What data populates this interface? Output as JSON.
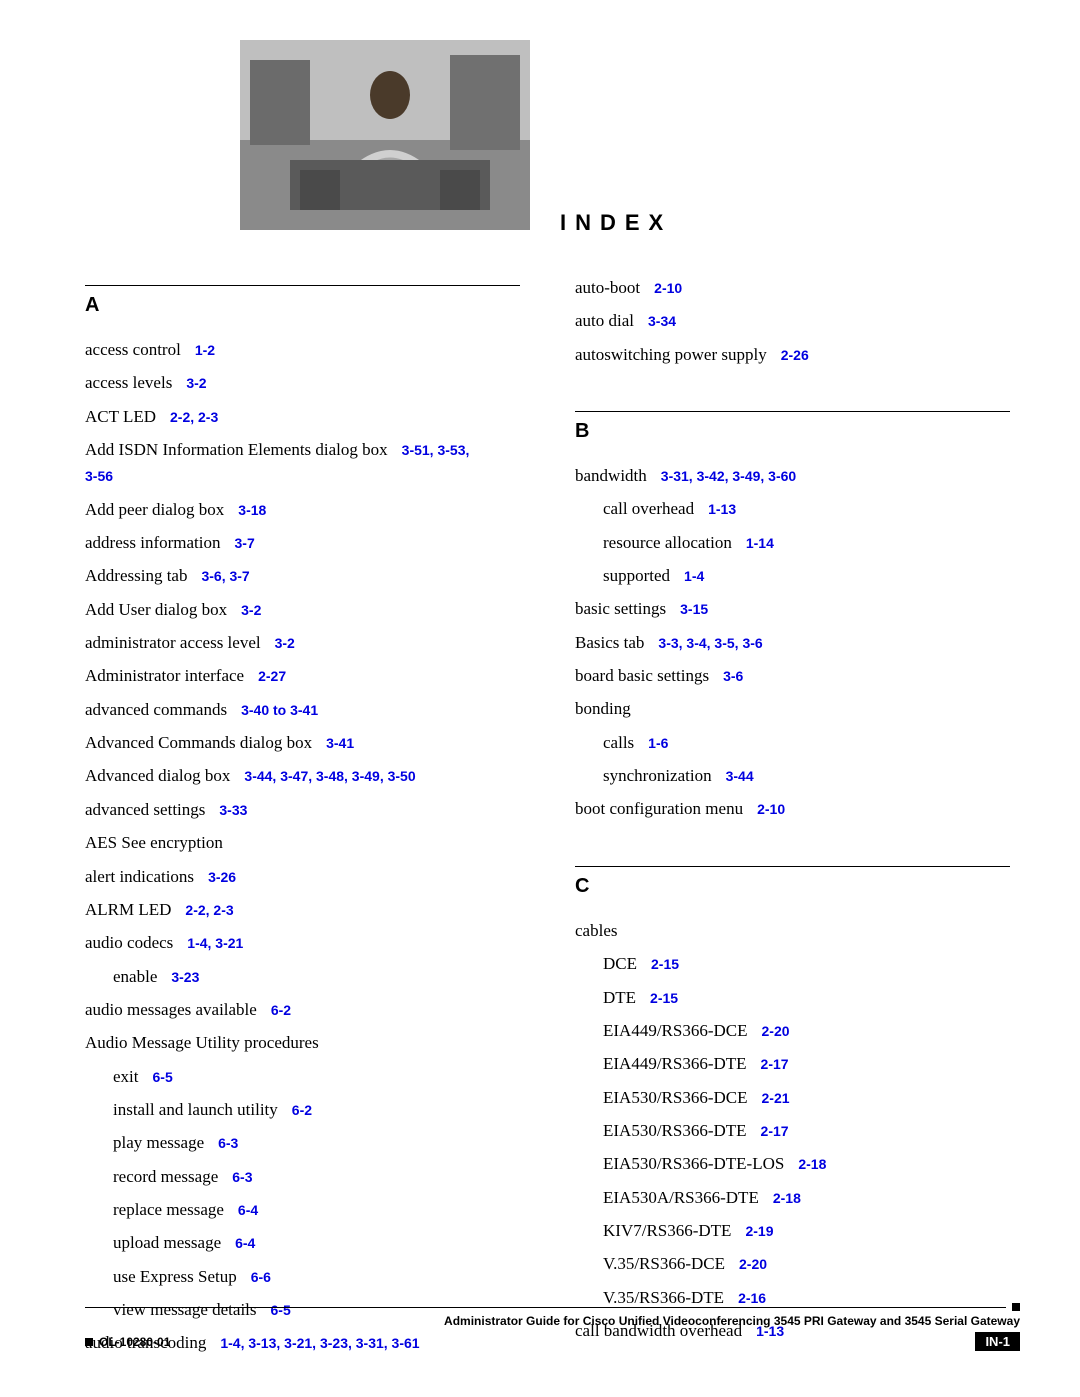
{
  "index_title": "INDEX",
  "sections": {
    "A": {
      "letter": "A",
      "entries": [
        {
          "text": "access control",
          "refs": "1-2"
        },
        {
          "text": "access levels",
          "refs": "3-2"
        },
        {
          "text": "ACT LED",
          "refs": "2-2, 2-3"
        },
        {
          "text": "Add ISDN Information Elements dialog box",
          "refs": "3-51, 3-53, 3-56",
          "wrap": true
        },
        {
          "text": "Add peer dialog box",
          "refs": "3-18"
        },
        {
          "text": "address information",
          "refs": "3-7"
        },
        {
          "text": "Addressing tab",
          "refs": "3-6, 3-7"
        },
        {
          "text": "Add User dialog box",
          "refs": "3-2"
        },
        {
          "text": "administrator access level",
          "refs": "3-2"
        },
        {
          "text": "Administrator interface",
          "refs": "2-27"
        },
        {
          "text": "advanced commands",
          "refs": "3-40 to 3-41"
        },
        {
          "text": "Advanced Commands dialog box",
          "refs": "3-41"
        },
        {
          "text": "Advanced dialog box",
          "refs": "3-44, 3-47, 3-48, 3-49, 3-50"
        },
        {
          "text": "advanced settings",
          "refs": "3-33"
        },
        {
          "text": "AES See encryption",
          "refs": ""
        },
        {
          "text": "alert indications",
          "refs": "3-26"
        },
        {
          "text": "ALRM LED",
          "refs": "2-2, 2-3"
        },
        {
          "text": "audio codecs",
          "refs": "1-4, 3-21"
        },
        {
          "text": "enable",
          "refs": "3-23",
          "indent": 1
        },
        {
          "text": "audio messages available",
          "refs": "6-2"
        },
        {
          "text": "Audio Message Utility procedures",
          "refs": ""
        },
        {
          "text": "exit",
          "refs": "6-5",
          "indent": 1
        },
        {
          "text": "install and launch utility",
          "refs": "6-2",
          "indent": 1
        },
        {
          "text": "play message",
          "refs": "6-3",
          "indent": 1
        },
        {
          "text": "record message",
          "refs": "6-3",
          "indent": 1
        },
        {
          "text": "replace message",
          "refs": "6-4",
          "indent": 1
        },
        {
          "text": "upload message",
          "refs": "6-4",
          "indent": 1
        },
        {
          "text": "use Express Setup",
          "refs": "6-6",
          "indent": 1
        },
        {
          "text": "view message details",
          "refs": "6-5",
          "indent": 1
        },
        {
          "text": "audio transcoding",
          "refs": "1-4, 3-13, 3-21, 3-23, 3-31, 3-61"
        }
      ]
    },
    "A2": {
      "entries": [
        {
          "text": "auto-boot",
          "refs": "2-10"
        },
        {
          "text": "auto dial",
          "refs": "3-34"
        },
        {
          "text": "autoswitching power supply",
          "refs": "2-26"
        }
      ]
    },
    "B": {
      "letter": "B",
      "entries": [
        {
          "text": "bandwidth",
          "refs": "3-31, 3-42, 3-49, 3-60"
        },
        {
          "text": "call overhead",
          "refs": "1-13",
          "indent": 1
        },
        {
          "text": "resource allocation",
          "refs": "1-14",
          "indent": 1
        },
        {
          "text": "supported",
          "refs": "1-4",
          "indent": 1
        },
        {
          "text": "basic settings",
          "refs": "3-15"
        },
        {
          "text": "Basics tab",
          "refs": "3-3, 3-4, 3-5, 3-6"
        },
        {
          "text": "board basic settings",
          "refs": "3-6"
        },
        {
          "text": "bonding",
          "refs": ""
        },
        {
          "text": "calls",
          "refs": "1-6",
          "indent": 1
        },
        {
          "text": "synchronization",
          "refs": "3-44",
          "indent": 1
        },
        {
          "text": "boot configuration menu",
          "refs": "2-10"
        }
      ]
    },
    "C": {
      "letter": "C",
      "entries": [
        {
          "text": "cables",
          "refs": ""
        },
        {
          "text": "DCE",
          "refs": "2-15",
          "indent": 1
        },
        {
          "text": "DTE",
          "refs": "2-15",
          "indent": 1
        },
        {
          "text": "EIA449/RS366-DCE",
          "refs": "2-20",
          "indent": 1
        },
        {
          "text": "EIA449/RS366-DTE",
          "refs": "2-17",
          "indent": 1
        },
        {
          "text": "EIA530/RS366-DCE",
          "refs": "2-21",
          "indent": 1
        },
        {
          "text": "EIA530/RS366-DTE",
          "refs": "2-17",
          "indent": 1
        },
        {
          "text": "EIA530/RS366-DTE-LOS",
          "refs": "2-18",
          "indent": 1
        },
        {
          "text": "EIA530A/RS366-DTE",
          "refs": "2-18",
          "indent": 1
        },
        {
          "text": "KIV7/RS366-DTE",
          "refs": "2-19",
          "indent": 1
        },
        {
          "text": "V.35/RS366-DCE",
          "refs": "2-20",
          "indent": 1
        },
        {
          "text": "V.35/RS366-DTE",
          "refs": "2-16",
          "indent": 1
        },
        {
          "text": "call bandwidth overhead",
          "refs": "1-13"
        }
      ]
    }
  },
  "footer": {
    "title": "Administrator Guide for Cisco Unified Videoconferencing 3545 PRI Gateway and 3545 Serial Gateway",
    "doc_id": "OL-10280-01",
    "page_num": "IN-1"
  },
  "colors": {
    "link": "#0000e0",
    "text": "#000000",
    "bg": "#ffffff"
  }
}
